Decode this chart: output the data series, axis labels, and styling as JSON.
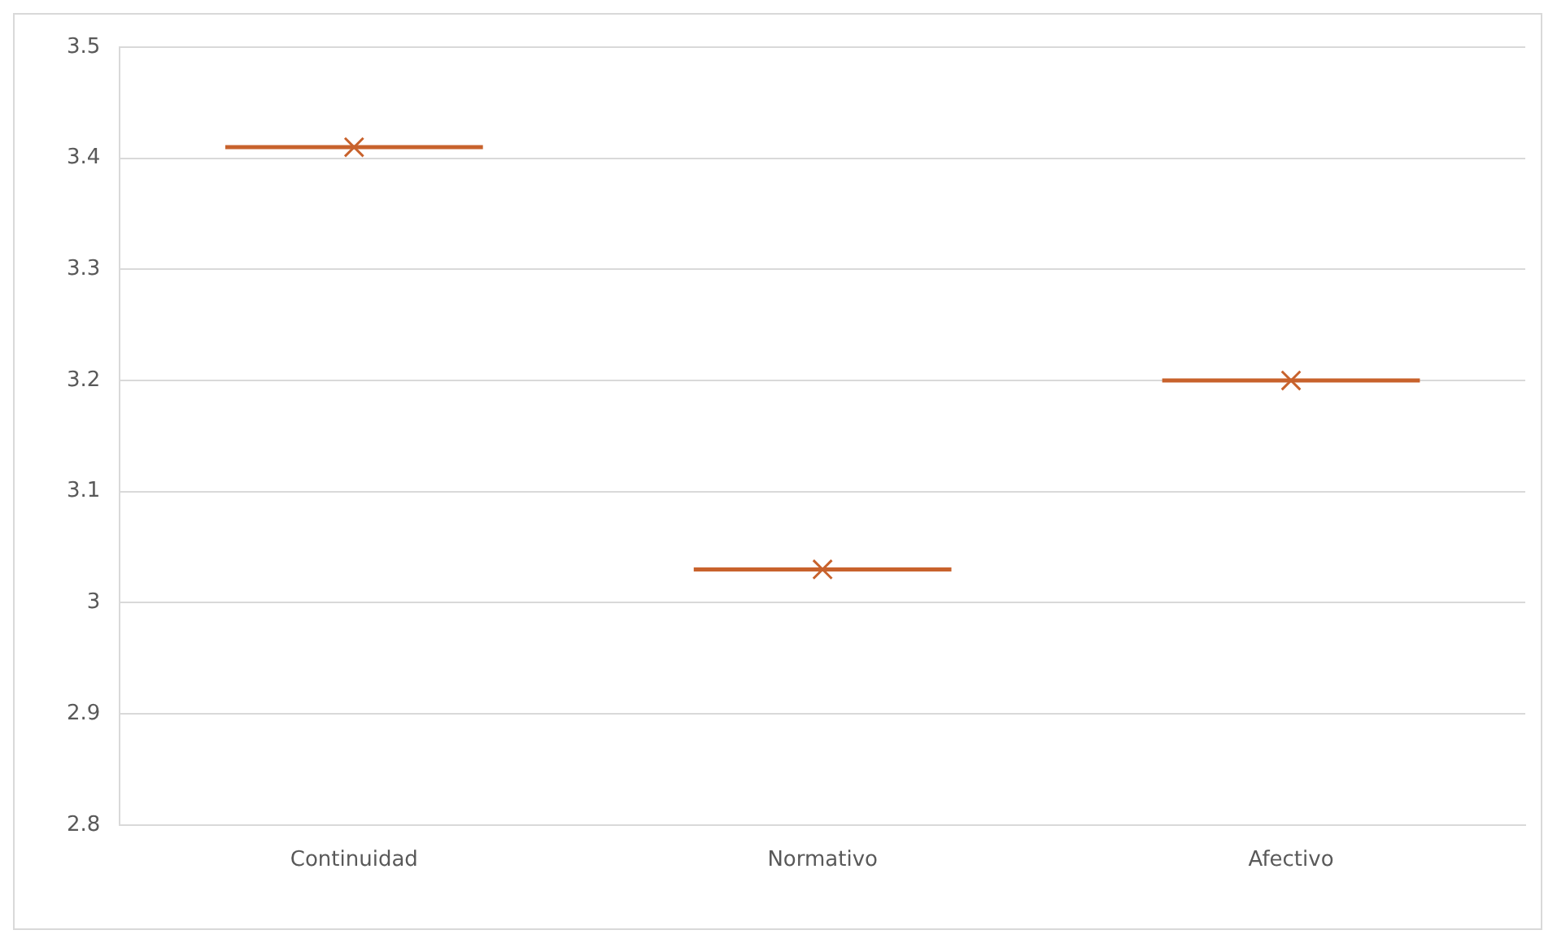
{
  "chart_data": {
    "type": "box",
    "categories": [
      "Continuidad",
      "Normativo",
      "Afectivo"
    ],
    "color": "#c8622c",
    "marker": "cross",
    "boxes": [
      {
        "low": 3.41,
        "q1": 3.41,
        "median": 3.41,
        "q3": 3.41,
        "high": 3.41,
        "mean": 3.41
      },
      {
        "low": 3.03,
        "q1": 3.03,
        "median": 3.03,
        "q3": 3.03,
        "high": 3.03,
        "mean": 3.03
      },
      {
        "low": 3.2,
        "q1": 3.2,
        "median": 3.2,
        "q3": 3.2,
        "high": 3.2,
        "mean": 3.2
      }
    ],
    "ylim": [
      2.8,
      3.5
    ],
    "yticks": [
      2.8,
      2.9,
      3,
      3.1,
      3.2,
      3.3,
      3.4,
      3.5
    ],
    "grid": "y",
    "legend": false
  }
}
